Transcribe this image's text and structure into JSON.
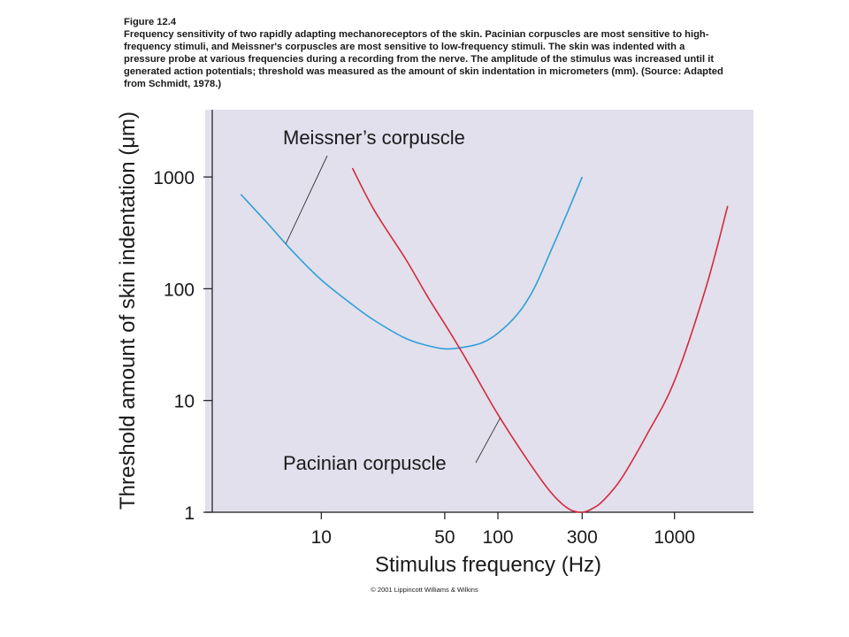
{
  "caption": {
    "heading": "Figure 12.4",
    "text": "Frequency sensitivity of two rapidly adapting mechanoreceptors of the skin. Pacinian corpuscles are most sensitive to high-frequency stimuli, and Meissner's corpuscles are most sensitive to low-frequency stimuli. The skin was indented with a pressure probe at various frequencies during a recording from the nerve. The amplitude of the stimulus was increased until it generated action potentials; threshold was measured as the amount of skin indentation in micrometers (mm). (Source: Adapted from Schmidt, 1978.)"
  },
  "copyright": "© 2001 Lippincott Williams & Wilkins",
  "chart_data": {
    "type": "line",
    "title": "",
    "xlabel": "Stimulus frequency (Hz)",
    "ylabel": "Threshold amount of skin indentation (μm)",
    "x_scale": "log",
    "y_scale": "log",
    "xlim": [
      2.2,
      2800
    ],
    "ylim": [
      1,
      4000
    ],
    "x_ticks": [
      10,
      50,
      100,
      300,
      1000
    ],
    "x_tick_labels": [
      "10",
      "50",
      "100",
      "300",
      "1000"
    ],
    "y_ticks": [
      1,
      10,
      100,
      1000
    ],
    "y_tick_labels": [
      "1",
      "10",
      "100",
      "1000"
    ],
    "grid": false,
    "background_color": "#e2e0ec",
    "series": [
      {
        "name": "Meissner’s corpuscle",
        "color": "#2f9fd8",
        "x": [
          3.5,
          5,
          7,
          10,
          15,
          20,
          30,
          40,
          50,
          60,
          80,
          100,
          130,
          160,
          200,
          250,
          300
        ],
        "y": [
          700,
          380,
          210,
          120,
          72,
          52,
          36,
          31,
          29,
          29.5,
          32.5,
          40,
          60,
          100,
          220,
          500,
          1000
        ]
      },
      {
        "name": "Pacinian corpuscle",
        "color": "#d3293f",
        "x": [
          15,
          20,
          30,
          40,
          55,
          70,
          100,
          150,
          200,
          250,
          300,
          350,
          400,
          500,
          700,
          1000,
          1500,
          2000
        ],
        "y": [
          1200,
          500,
          185,
          85,
          38,
          20,
          7.5,
          2.8,
          1.5,
          1.08,
          1.0,
          1.1,
          1.3,
          2.0,
          5.0,
          15,
          100,
          550
        ]
      }
    ],
    "annotations": [
      {
        "text": "Meissner’s corpuscle",
        "series": 0,
        "x": 6.3
      },
      {
        "text": "Pacinian corpuscle",
        "series": 1,
        "x": 103
      }
    ]
  }
}
